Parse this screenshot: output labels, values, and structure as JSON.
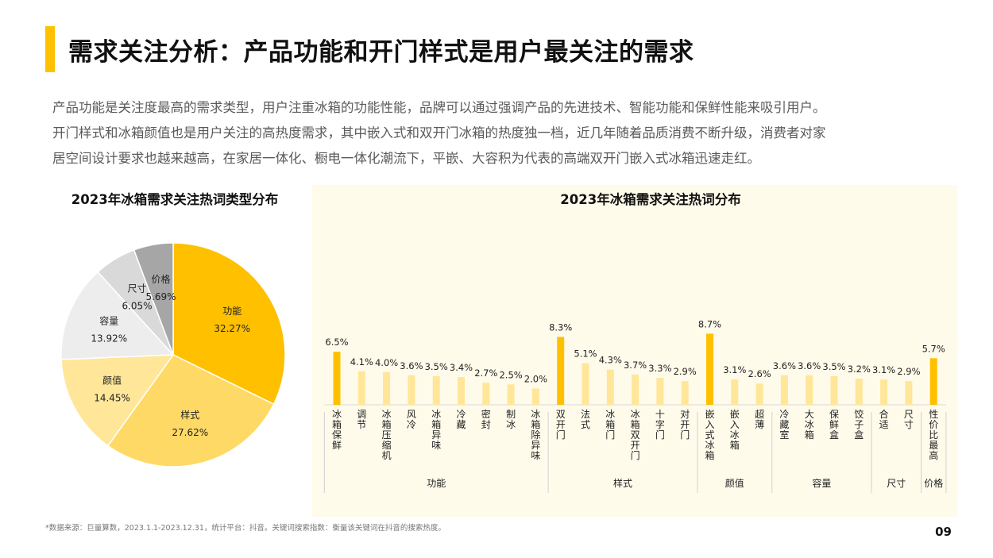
{
  "page": {
    "title": "需求关注分析：产品功能和开门样式是用户最关注的需求",
    "intro": [
      "产品功能是关注度最高的需求类型，用户注重冰箱的功能性能，品牌可以通过强调产品的先进技术、智能功能和保鲜性能来吸引用户。",
      "开门样式和冰箱颜值也是用户关注的高热度需求，其中嵌入式和双开门冰箱的热度独一档，近几年随着品质消费不断升级，消费者对家",
      "居空间设计要求也越来越高，在家居一体化、橱电一体化潮流下，平嵌、大容积为代表的高端双开门嵌入式冰箱迅速走红。"
    ],
    "footnote": "*数据来源：巨量算数，2023.1.1-2023.12.31，统计平台：抖音。关键词搜索指数：衡量该关键词在抖音的搜索热度。",
    "page_number": "09"
  },
  "chart_data": [
    {
      "type": "pie",
      "title": "2023年冰箱需求关注热词类型分布",
      "slices": [
        {
          "label": "功能",
          "value": 32.27,
          "display": "32.27%",
          "color": "#FFC000"
        },
        {
          "label": "样式",
          "value": 27.62,
          "display": "27.62%",
          "color": "#FFD966"
        },
        {
          "label": "颜值",
          "value": 14.45,
          "display": "14.45%",
          "color": "#FFE699"
        },
        {
          "label": "容量",
          "value": 13.92,
          "display": "13.92%",
          "color": "#EDEDED"
        },
        {
          "label": "尺寸",
          "value": 6.05,
          "display": "6.05%",
          "color": "#D9D9D9"
        },
        {
          "label": "价格",
          "value": 5.69,
          "display": "5.69%",
          "color": "#A6A6A6"
        }
      ]
    },
    {
      "type": "bar",
      "title": "2023年冰箱需求关注热词分布",
      "ylim": [
        0,
        10
      ],
      "colors": {
        "highlight": "#FFC000",
        "normal": "#FFE699"
      },
      "groups": [
        {
          "name": "功能",
          "items": [
            {
              "label": "冰箱保鲜",
              "value": 6.5,
              "display": "6.5%",
              "highlight": true
            },
            {
              "label": "调节",
              "value": 4.1,
              "display": "4.1%",
              "highlight": false
            },
            {
              "label": "冰箱压缩机",
              "value": 4.0,
              "display": "4.0%",
              "highlight": false
            },
            {
              "label": "风冷",
              "value": 3.6,
              "display": "3.6%",
              "highlight": false
            },
            {
              "label": "冰箱异味",
              "value": 3.5,
              "display": "3.5%",
              "highlight": false
            },
            {
              "label": "冷藏",
              "value": 3.4,
              "display": "3.4%",
              "highlight": false
            },
            {
              "label": "密封",
              "value": 2.7,
              "display": "2.7%",
              "highlight": false
            },
            {
              "label": "制冰",
              "value": 2.5,
              "display": "2.5%",
              "highlight": false
            },
            {
              "label": "冰箱除异味",
              "value": 2.0,
              "display": "2.0%",
              "highlight": false
            }
          ]
        },
        {
          "name": "样式",
          "items": [
            {
              "label": "双开门",
              "value": 8.3,
              "display": "8.3%",
              "highlight": true
            },
            {
              "label": "法式",
              "value": 5.1,
              "display": "5.1%",
              "highlight": false
            },
            {
              "label": "冰箱门",
              "value": 4.3,
              "display": "4.3%",
              "highlight": false
            },
            {
              "label": "冰箱双开门",
              "value": 3.7,
              "display": "3.7%",
              "highlight": false
            },
            {
              "label": "十字门",
              "value": 3.3,
              "display": "3.3%",
              "highlight": false
            },
            {
              "label": "对开门",
              "value": 2.9,
              "display": "2.9%",
              "highlight": false
            }
          ]
        },
        {
          "name": "颜值",
          "items": [
            {
              "label": "嵌入式冰箱",
              "value": 8.7,
              "display": "8.7%",
              "highlight": true
            },
            {
              "label": "嵌入冰箱",
              "value": 3.1,
              "display": "3.1%",
              "highlight": false
            },
            {
              "label": "超薄",
              "value": 2.6,
              "display": "2.6%",
              "highlight": false
            }
          ]
        },
        {
          "name": "容量",
          "items": [
            {
              "label": "冷藏室",
              "value": 3.6,
              "display": "3.6%",
              "highlight": false
            },
            {
              "label": "大冰箱",
              "value": 3.6,
              "display": "3.6%",
              "highlight": false
            },
            {
              "label": "保鲜盒",
              "value": 3.5,
              "display": "3.5%",
              "highlight": false
            },
            {
              "label": "饺子盒",
              "value": 3.2,
              "display": "3.2%",
              "highlight": false
            }
          ]
        },
        {
          "name": "尺寸",
          "items": [
            {
              "label": "合适",
              "value": 3.1,
              "display": "3.1%",
              "highlight": false
            },
            {
              "label": "尺寸",
              "value": 2.9,
              "display": "2.9%",
              "highlight": false
            }
          ]
        },
        {
          "name": "价格",
          "items": [
            {
              "label": "性价比最高",
              "value": 5.7,
              "display": "5.7%",
              "highlight": true
            }
          ]
        }
      ]
    }
  ]
}
